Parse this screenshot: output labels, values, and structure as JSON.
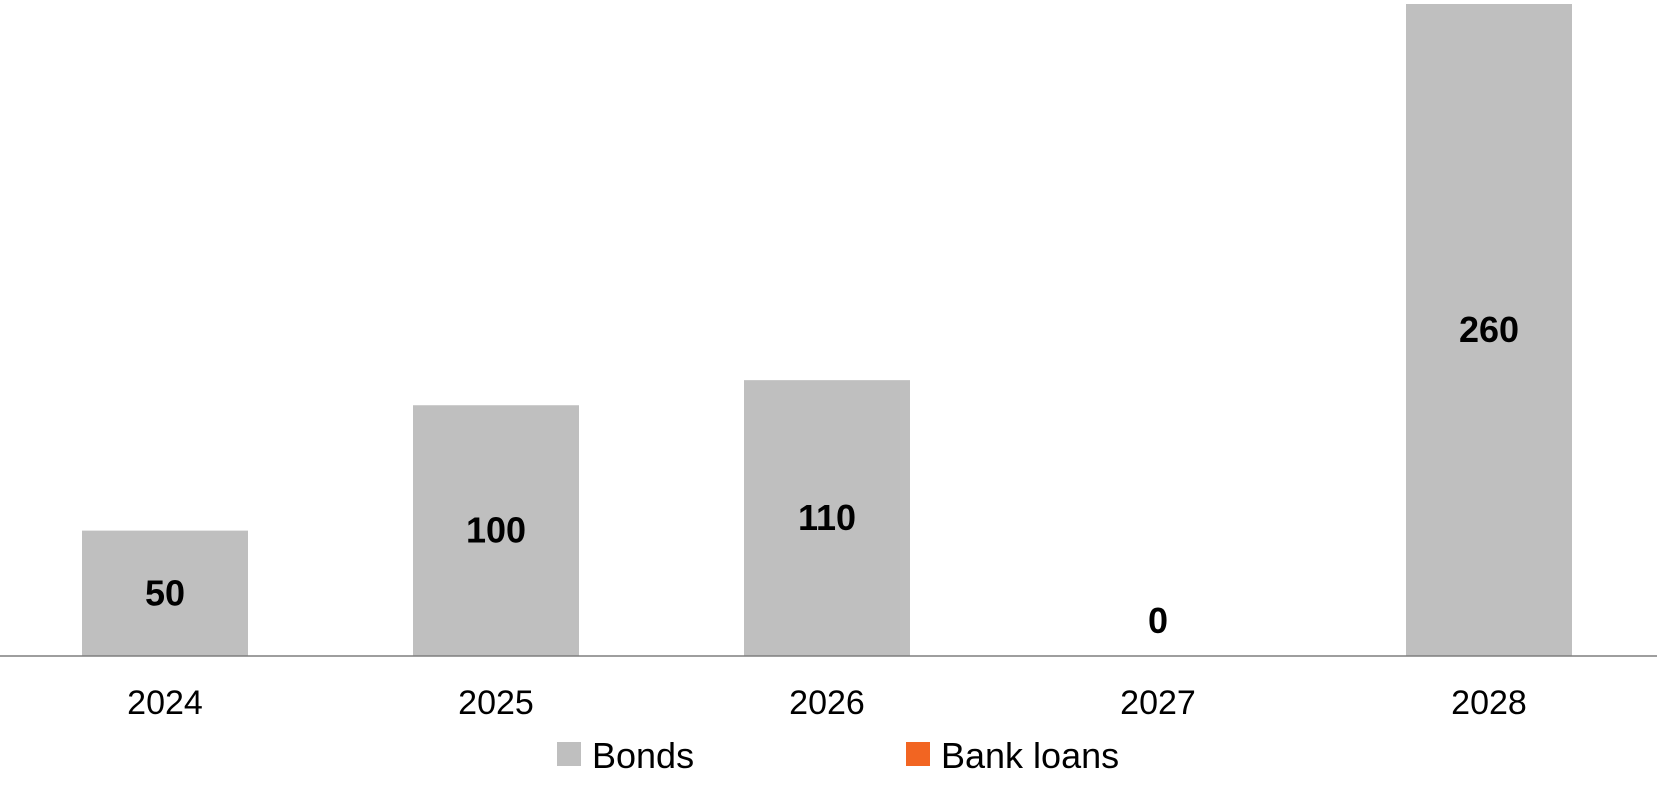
{
  "chart_data": {
    "type": "bar",
    "categories": [
      "2024",
      "2025",
      "2026",
      "2027",
      "2028"
    ],
    "series": [
      {
        "name": "Bonds",
        "color": "#bfbfbf",
        "values": [
          50,
          100,
          110,
          0,
          260
        ]
      },
      {
        "name": "Bank loans",
        "color": "#f26522",
        "values": [
          0,
          0,
          0,
          0,
          0
        ]
      }
    ],
    "data_labels": [
      "50",
      "100",
      "110",
      "0",
      "260"
    ],
    "title": "",
    "xlabel": "",
    "ylabel": "",
    "ylim": [
      0,
      260
    ],
    "grid": false,
    "legend_position": "bottom",
    "axis_color": "#7f7f7f"
  }
}
